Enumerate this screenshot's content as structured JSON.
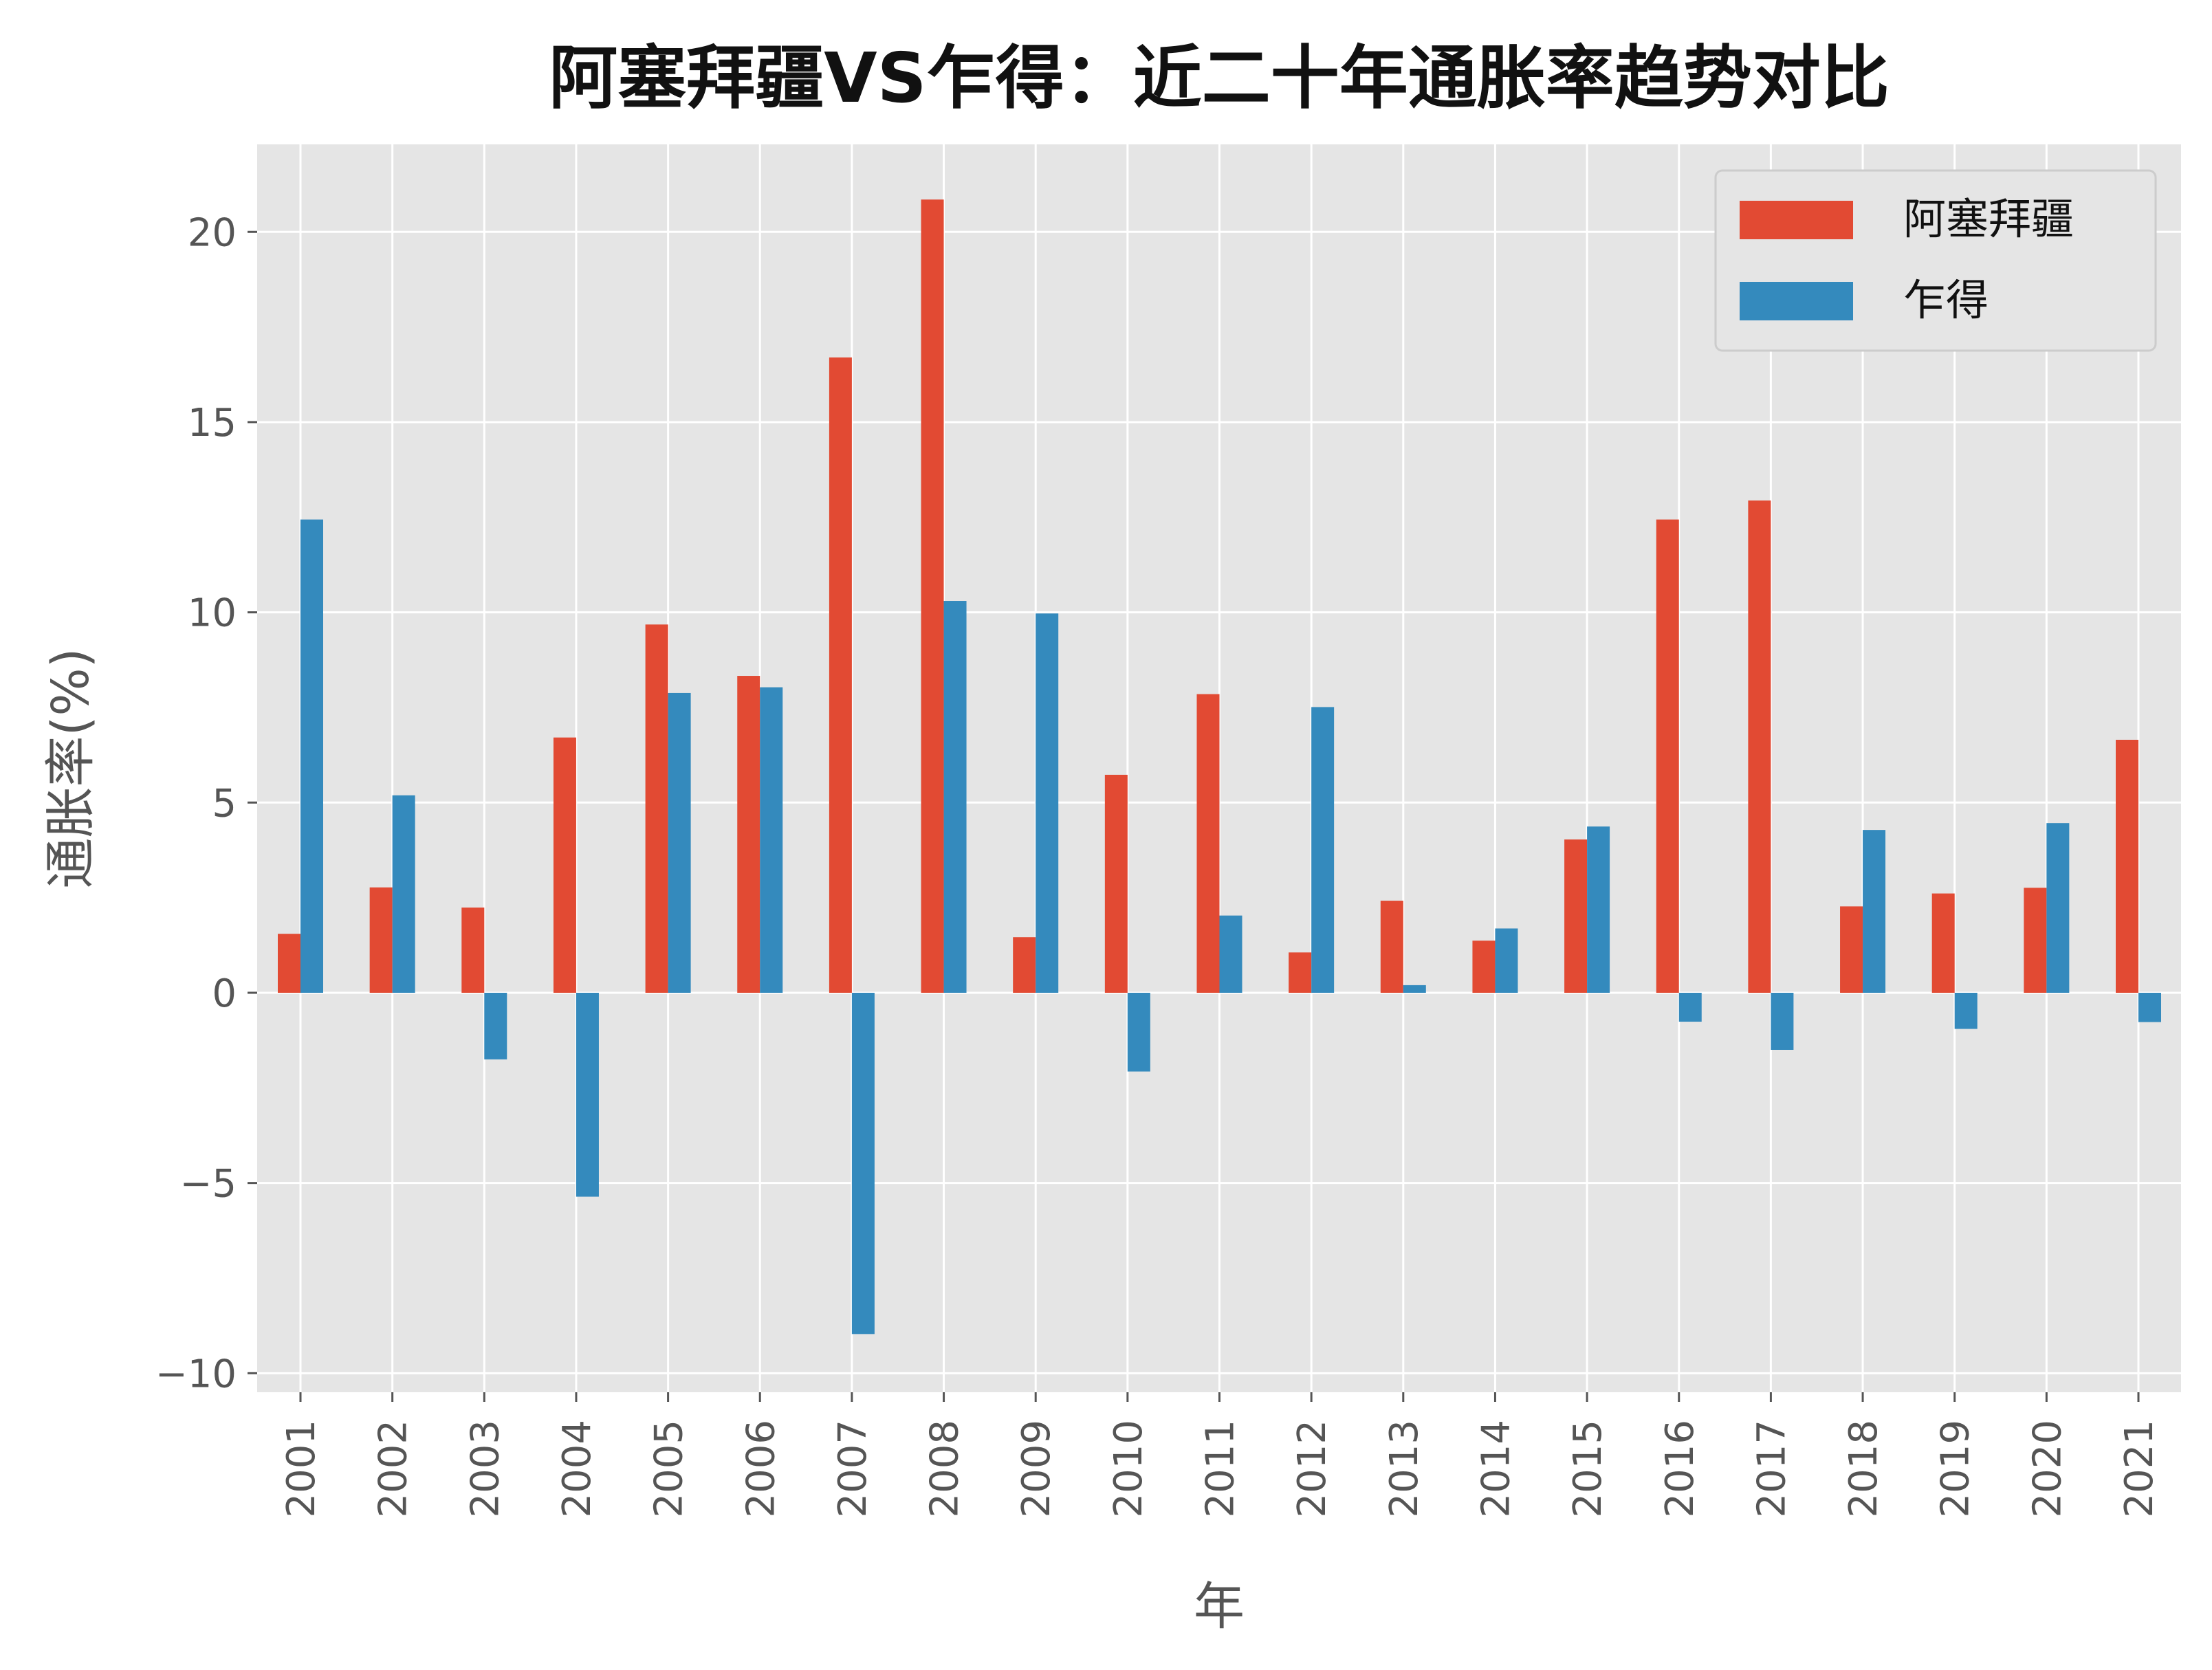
{
  "chart_data": {
    "type": "bar",
    "title": "阿塞拜疆VS乍得：近二十年通胀率趋势对比",
    "xlabel": "年",
    "ylabel": "通胀率(%)",
    "categories": [
      "2001",
      "2002",
      "2003",
      "2004",
      "2005",
      "2006",
      "2007",
      "2008",
      "2009",
      "2010",
      "2011",
      "2012",
      "2013",
      "2014",
      "2015",
      "2016",
      "2017",
      "2018",
      "2019",
      "2020",
      "2021"
    ],
    "series": [
      {
        "name": "阿塞拜疆",
        "color": "#E24A33",
        "values": [
          1.55,
          2.77,
          2.24,
          6.71,
          9.68,
          8.33,
          16.7,
          20.85,
          1.46,
          5.73,
          7.85,
          1.06,
          2.42,
          1.37,
          4.03,
          12.44,
          12.94,
          2.27,
          2.61,
          2.76,
          6.65
        ]
      },
      {
        "name": "乍得",
        "color": "#348ABD",
        "values": [
          12.44,
          5.19,
          -1.75,
          -5.36,
          7.88,
          8.03,
          -8.97,
          10.3,
          9.97,
          -2.07,
          2.03,
          7.51,
          0.2,
          1.69,
          4.37,
          -0.76,
          -1.5,
          4.28,
          -0.95,
          4.46,
          -0.77
        ]
      }
    ],
    "ylim": [
      -10.5,
      22.3
    ],
    "yticks": [
      -10,
      -5,
      0,
      5,
      10,
      15,
      20
    ],
    "ytick_labels": [
      "−10",
      "−5",
      "0",
      "5",
      "10",
      "15",
      "20"
    ],
    "grid": true,
    "legend_position": "top-right",
    "background": "#E5E5E5"
  }
}
